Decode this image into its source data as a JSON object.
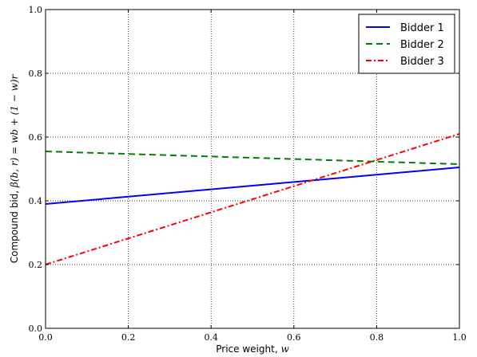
{
  "chart_data": {
    "type": "line",
    "title": "",
    "xlabel": "Price weight, ",
    "xlabel_math": "w",
    "ylabel": "Compound bid, ",
    "ylabel_math": "β(b, r) = wb + (1 − w)r",
    "xlim": [
      0.0,
      1.0
    ],
    "ylim": [
      0.0,
      1.0
    ],
    "xticks": [
      0.0,
      0.2,
      0.4,
      0.6,
      0.8,
      1.0
    ],
    "yticks": [
      0.0,
      0.2,
      0.4,
      0.6,
      0.8,
      1.0
    ],
    "xtick_labels": [
      "0.0",
      "0.2",
      "0.4",
      "0.6",
      "0.8",
      "1.0"
    ],
    "ytick_labels": [
      "0.0",
      "0.2",
      "0.4",
      "0.6",
      "0.8",
      "1.0"
    ],
    "grid": true,
    "legend_position": "top-right",
    "series": [
      {
        "name": "Bidder 1",
        "x": [
          0.0,
          1.0
        ],
        "y": [
          0.39,
          0.505
        ],
        "color": "#0000ff",
        "style": "solid"
      },
      {
        "name": "Bidder 2",
        "x": [
          0.0,
          1.0
        ],
        "y": [
          0.555,
          0.515
        ],
        "color": "#008000",
        "style": "dashed"
      },
      {
        "name": "Bidder 3",
        "x": [
          0.0,
          1.0
        ],
        "y": [
          0.2,
          0.61
        ],
        "color": "#ff0000",
        "style": "dashdot"
      }
    ]
  }
}
